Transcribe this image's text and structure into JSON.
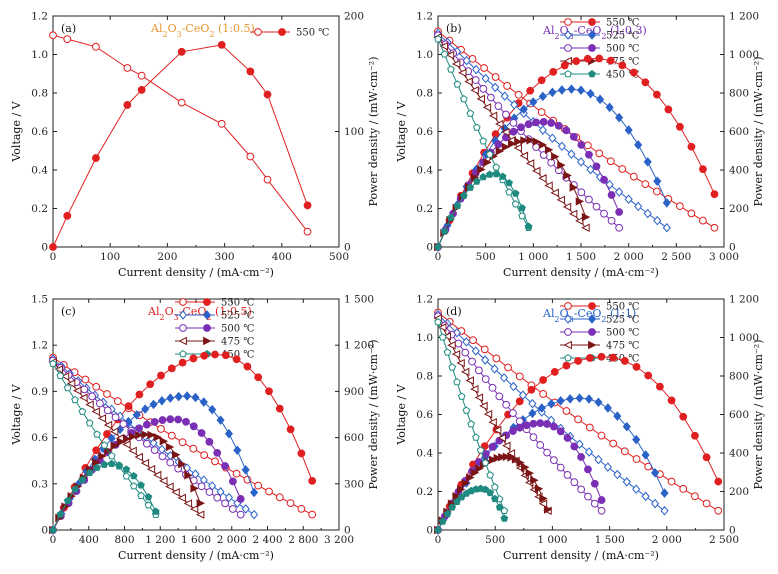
{
  "chart_data": [
    {
      "type": "line",
      "panel_label": "(a)",
      "title": "Al2O3-CeO2 (1:0.5)",
      "title_color": "#e8962e",
      "xlabel": "Current density / (mA·cm⁻²)",
      "ylabel": "Voltage / V",
      "y2label": "Power density / (mW·cm⁻²)",
      "xlim": [
        0,
        500
      ],
      "xticks": [
        "0",
        "100",
        "200",
        "300",
        "400",
        "500"
      ],
      "ylim": [
        0,
        1.2
      ],
      "yticks": [
        "0",
        "0.2",
        "0.4",
        "0.6",
        "0.8",
        "1.0",
        "1.2"
      ],
      "y2lim": [
        0,
        200
      ],
      "y2ticks": [
        "0",
        "100",
        "200"
      ],
      "legend": [
        {
          "label": "550 ℃",
          "color": "#e02020"
        }
      ],
      "series": [
        {
          "name": "550 ℃",
          "color": "#e02020",
          "voltage": {
            "x": [
              0,
              25,
              75,
              130,
              155,
              225,
              295,
              345,
              375,
              445
            ],
            "y": [
              1.1,
              1.08,
              1.04,
              0.93,
              0.89,
              0.75,
              0.64,
              0.47,
              0.35,
              0.08
            ]
          },
          "power": {
            "x": [
              0,
              25,
              75,
              130,
              155,
              225,
              295,
              345,
              375,
              445
            ],
            "y": [
              0,
              27,
              77,
              123,
              136,
              169,
              175,
              152,
              132,
              36
            ]
          }
        }
      ]
    },
    {
      "type": "line",
      "panel_label": "(b)",
      "title": "Al2O3-CeO2 (1:0.3)",
      "title_color": "#7a2fb5",
      "xlabel": "Current density / (mA·cm⁻²)",
      "ylabel": "Voltage / V",
      "y2label": "Power density / (mW·cm⁻²)",
      "xlim": [
        0,
        3000
      ],
      "xticks": [
        "0",
        "500",
        "1 000",
        "1 500",
        "2 000",
        "2 500",
        "3 000"
      ],
      "ylim": [
        0,
        1.2
      ],
      "yticks": [
        "0",
        "0.2",
        "0.4",
        "0.6",
        "0.8",
        "1.0",
        "1.2"
      ],
      "y2lim": [
        0,
        1200
      ],
      "y2ticks": [
        "0",
        "200",
        "400",
        "600",
        "800",
        "1 000",
        "1 200"
      ],
      "legend": [
        {
          "label": "550 ℃",
          "color": "#e02020"
        },
        {
          "label": "525 ℃",
          "color": "#2a62c8"
        },
        {
          "label": "500 ℃",
          "color": "#7a2fb5"
        },
        {
          "label": "475 ℃",
          "color": "#7b1515"
        },
        {
          "label": "450 ℃",
          "color": "#1f8a80"
        }
      ],
      "series": [
        {
          "name": "550 ℃",
          "color": "#e02020",
          "marker": "circle",
          "ocv": 1.12,
          "imax": 2900,
          "pmax": 980,
          "ipeak": 1650
        },
        {
          "name": "525 ℃",
          "color": "#2a62c8",
          "marker": "diamond",
          "ocv": 1.11,
          "imax": 2400,
          "pmax": 820,
          "ipeak": 1400
        },
        {
          "name": "500 ℃",
          "color": "#7a2fb5",
          "marker": "circle",
          "ocv": 1.1,
          "imax": 1900,
          "pmax": 650,
          "ipeak": 1100
        },
        {
          "name": "475 ℃",
          "color": "#7b1515",
          "marker": "triangle",
          "ocv": 1.09,
          "imax": 1550,
          "pmax": 555,
          "ipeak": 950
        },
        {
          "name": "450 ℃",
          "color": "#1f8a80",
          "marker": "pentagon",
          "ocv": 1.08,
          "imax": 950,
          "pmax": 380,
          "ipeak": 600
        }
      ]
    },
    {
      "type": "line",
      "panel_label": "(c)",
      "title": "Al2O3-CeO2 (1:0.5)",
      "title_color": "#e02020",
      "xlabel": "Current density / (mA·cm⁻²)",
      "ylabel": "Voltage / V",
      "y2label": "Power density / (mW·cm⁻²)",
      "xlim": [
        0,
        3200
      ],
      "xticks": [
        "0",
        "400",
        "800",
        "1 200",
        "1 600",
        "2 000",
        "2 400",
        "2 800",
        "3 200"
      ],
      "ylim": [
        0,
        1.5
      ],
      "yticks": [
        "0",
        "0.3",
        "0.6",
        "0.9",
        "1.2",
        "1.5"
      ],
      "y2lim": [
        0,
        1500
      ],
      "y2ticks": [
        "0",
        "300",
        "600",
        "900",
        "1 200",
        "1 500"
      ],
      "legend": [
        {
          "label": "550 ℃",
          "color": "#e02020"
        },
        {
          "label": "525 ℃",
          "color": "#2a62c8"
        },
        {
          "label": "500 ℃",
          "color": "#7a2fb5"
        },
        {
          "label": "475 ℃",
          "color": "#7b1515"
        },
        {
          "label": "450 ℃",
          "color": "#1f8a80"
        }
      ],
      "series": [
        {
          "name": "550 ℃",
          "color": "#e02020",
          "marker": "circle",
          "ocv": 1.12,
          "imax": 2900,
          "pmax": 1140,
          "ipeak": 1850
        },
        {
          "name": "525 ℃",
          "color": "#2a62c8",
          "marker": "diamond",
          "ocv": 1.11,
          "imax": 2250,
          "pmax": 870,
          "ipeak": 1500
        },
        {
          "name": "500 ℃",
          "color": "#7a2fb5",
          "marker": "circle",
          "ocv": 1.1,
          "imax": 2100,
          "pmax": 720,
          "ipeak": 1350
        },
        {
          "name": "475 ℃",
          "color": "#7b1515",
          "marker": "triangle",
          "ocv": 1.09,
          "imax": 1650,
          "pmax": 620,
          "ipeak": 1050
        },
        {
          "name": "450 ℃",
          "color": "#1f8a80",
          "marker": "pentagon",
          "ocv": 1.08,
          "imax": 1150,
          "pmax": 430,
          "ipeak": 650
        }
      ]
    },
    {
      "type": "line",
      "panel_label": "(d)",
      "title": "Al2O3-CeO2 (1:1)",
      "title_color": "#2a62c8",
      "xlabel": "Current density / (mA·cm⁻²)",
      "ylabel": "Voltage / V",
      "y2label": "Power density / (mW·cm⁻²)",
      "xlim": [
        0,
        2500
      ],
      "xticks": [
        "0",
        "500",
        "1 000",
        "1 500",
        "2 000",
        "2 500"
      ],
      "ylim": [
        0,
        1.2
      ],
      "yticks": [
        "0",
        "0.2",
        "0.4",
        "0.6",
        "0.8",
        "1.0",
        "1.2"
      ],
      "y2lim": [
        0,
        1200
      ],
      "y2ticks": [
        "0",
        "200",
        "400",
        "600",
        "800",
        "1 000",
        "1 200"
      ],
      "legend": [
        {
          "label": "550 ℃",
          "color": "#e02020"
        },
        {
          "label": "525 ℃",
          "color": "#2a62c8"
        },
        {
          "label": "500 ℃",
          "color": "#7a2fb5"
        },
        {
          "label": "475 ℃",
          "color": "#7b1515"
        },
        {
          "label": "450 ℃",
          "color": "#1f8a80"
        }
      ],
      "series": [
        {
          "name": "550 ℃",
          "color": "#e02020",
          "marker": "circle",
          "ocv": 1.13,
          "imax": 2450,
          "pmax": 900,
          "ipeak": 1450
        },
        {
          "name": "525 ℃",
          "color": "#2a62c8",
          "marker": "diamond",
          "ocv": 1.12,
          "imax": 1980,
          "pmax": 685,
          "ipeak": 1250
        },
        {
          "name": "500 ℃",
          "color": "#7a2fb5",
          "marker": "circle",
          "ocv": 1.11,
          "imax": 1430,
          "pmax": 555,
          "ipeak": 900
        },
        {
          "name": "475 ℃",
          "color": "#7b1515",
          "marker": "triangle",
          "ocv": 1.1,
          "imax": 960,
          "pmax": 380,
          "ipeak": 600
        },
        {
          "name": "450 ℃",
          "color": "#1f8a80",
          "marker": "pentagon",
          "ocv": 1.08,
          "imax": 580,
          "pmax": 215,
          "ipeak": 380
        }
      ]
    }
  ]
}
